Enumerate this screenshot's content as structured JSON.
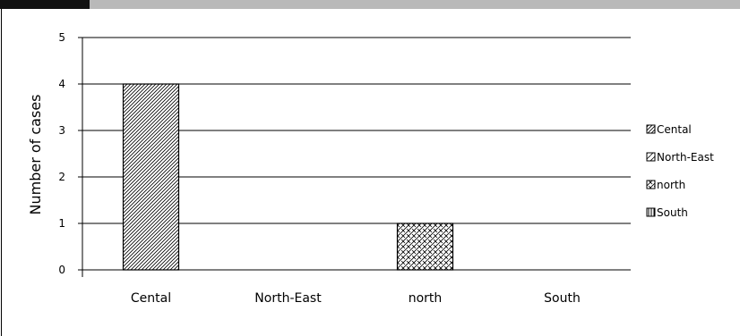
{
  "chart_data": {
    "type": "bar",
    "ylabel": "Number of cases",
    "categories": [
      "Cental",
      "North-East",
      "north",
      "South"
    ],
    "ylim": [
      0,
      5
    ],
    "yticks": [
      0,
      1,
      2,
      3,
      4,
      5
    ],
    "grid": true,
    "series": [
      {
        "name": "Cental",
        "values": [
          4,
          0,
          0,
          0
        ],
        "pattern": "diagonal-hatch"
      },
      {
        "name": "North-East",
        "values": [
          0,
          0,
          0,
          0
        ],
        "pattern": "dashed-diagonal"
      },
      {
        "name": "north",
        "values": [
          0,
          0,
          1,
          0
        ],
        "pattern": "crosshatch"
      },
      {
        "name": "South",
        "values": [
          0,
          0,
          0,
          0
        ],
        "pattern": "vertical-lines"
      }
    ],
    "legend_position": "right"
  }
}
